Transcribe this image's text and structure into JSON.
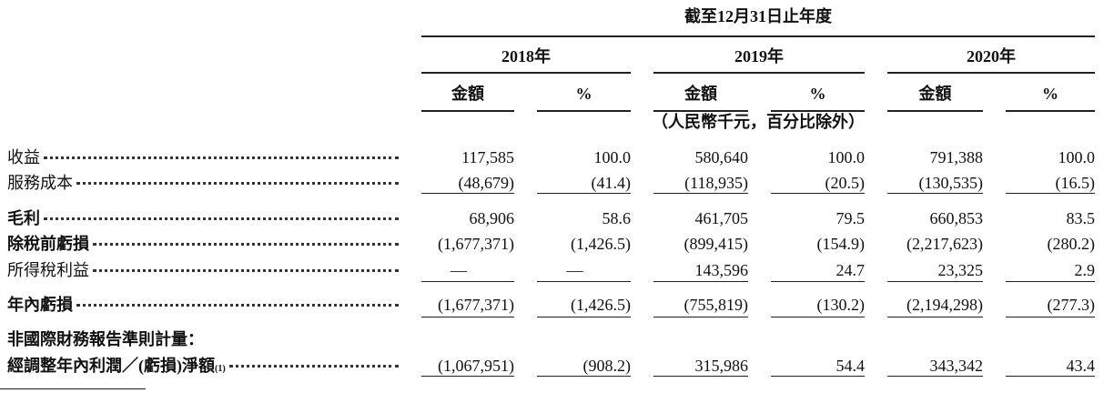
{
  "header": {
    "period": "截至12月31日止年度",
    "years": [
      "2018年",
      "2019年",
      "2020年"
    ],
    "sub_headers": [
      "金額",
      "%"
    ],
    "unit": "（人民幣千元，百分比除外）"
  },
  "table": {
    "rows": [
      {
        "label": "收益",
        "bold": false,
        "values": [
          "117,585",
          "100.0",
          "580,640",
          "100.0",
          "791,388",
          "100.0"
        ]
      },
      {
        "label": "服務成本",
        "bold": false,
        "values": [
          "(48,679)",
          "(41.4)",
          "(118,935)",
          "(20.5)",
          "(130,535)",
          "(16.5)"
        ]
      },
      {
        "label": "毛利",
        "bold": true,
        "values": [
          "68,906",
          "58.6",
          "461,705",
          "79.5",
          "660,853",
          "83.5"
        ]
      },
      {
        "label": "除稅前虧損",
        "bold": true,
        "values": [
          "(1,677,371)",
          "(1,426.5)",
          "(899,415)",
          "(154.9)",
          "(2,217,623)",
          "(280.2)"
        ]
      },
      {
        "label": "所得稅利益",
        "bold": false,
        "values": [
          "—",
          "—",
          "143,596",
          "24.7",
          "23,325",
          "2.9"
        ]
      },
      {
        "label": "年內虧損",
        "bold": true,
        "values": [
          "(1,677,371)",
          "(1,426.5)",
          "(755,819)",
          "(130.2)",
          "(2,194,298)",
          "(277.3)"
        ]
      },
      {
        "label": "非國際財務報告準則計量：",
        "bold": true,
        "values": []
      },
      {
        "label": "經調整年內利潤／(虧損)淨額",
        "note": "(1)",
        "bold": true,
        "values": [
          "(1,067,951)",
          "(908.2)",
          "315,986",
          "54.4",
          "343,342",
          "43.4"
        ]
      }
    ]
  }
}
